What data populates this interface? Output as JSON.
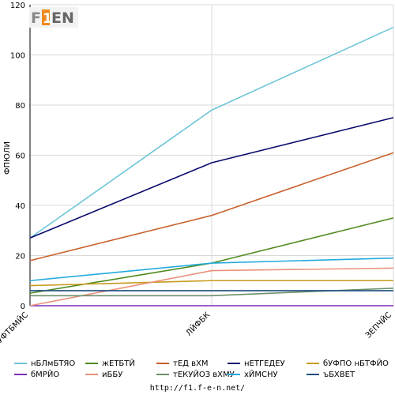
{
  "colors": {
    "background": "#ffffff",
    "grid": "#d8d8d8",
    "axis": "#000000"
  },
  "logo": {
    "text": "F1EN"
  },
  "footer": {
    "url": "http://f1.f-e-n.net/"
  },
  "chart_data": {
    "type": "line",
    "title": "",
    "xlabel": "",
    "ylabel": "ФПЮЛИ",
    "ylim": [
      0,
      120
    ],
    "yticks": [
      0,
      20,
      40,
      60,
      80,
      100,
      120
    ],
    "grid": true,
    "legend_position": "bottom",
    "categories": [
      "БЧУФТБМЙС",
      "ЛЙФБК",
      "ЗЕПЧЙС"
    ],
    "series": [
      {
        "name": "нБЛмБТЯО",
        "color": "#6ec6d8",
        "values": [
          27,
          78,
          111
        ]
      },
      {
        "name": "жЕТБТЙ",
        "color": "#4f8a1e",
        "values": [
          5,
          17,
          35
        ]
      },
      {
        "name": "тЕД вХМ",
        "color": "#c8602a",
        "values": [
          18,
          36,
          61
        ]
      },
      {
        "name": "нЕТГЕДЕУ",
        "color": "#0b0b6e",
        "values": [
          27,
          57,
          75
        ]
      },
      {
        "name": "бУФПО нБТФЙО",
        "color": "#c89a1e",
        "values": [
          8,
          10,
          10
        ]
      },
      {
        "name": "бМРЙО",
        "color": "#7b2fbf",
        "values": [
          0,
          0,
          0
        ]
      },
      {
        "name": "иББУ",
        "color": "#e8917a",
        "values": [
          0,
          14,
          15
        ]
      },
      {
        "name": "тЕКУЙОЗ вХМУ",
        "color": "#6b8f6b",
        "values": [
          4,
          4,
          7
        ]
      },
      {
        "name": "хЙМСНУ",
        "color": "#22aadd",
        "values": [
          10,
          17,
          19
        ]
      },
      {
        "name": "ъБХВЕТ",
        "color": "#1f4f7f",
        "values": [
          6,
          6,
          6
        ]
      }
    ]
  }
}
